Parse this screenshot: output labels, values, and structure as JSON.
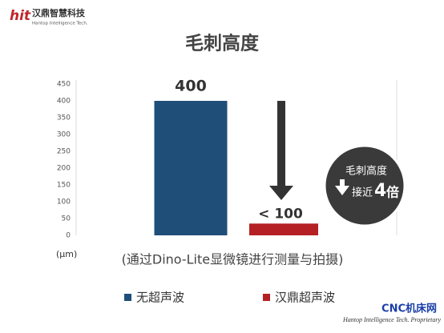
{
  "logo": {
    "mark": "hit",
    "name": "汉鼎智慧科技",
    "tagline": "Hantop Intelligence Tech."
  },
  "chart_data": {
    "type": "bar",
    "title": "毛刺高度",
    "subtitle": "(通过Dino-Lite显微镜进行测量与拍摄)",
    "y_label": "(μm)",
    "categories": [
      null,
      null
    ],
    "series": [
      {
        "name": "无超声波",
        "color": "#1f4e79",
        "values": [
          400,
          null
        ],
        "value_labels": [
          "400",
          null
        ]
      },
      {
        "name": "汉鼎超声波",
        "color": "#b52025",
        "values": [
          null,
          35
        ],
        "value_labels": [
          null,
          "< 100"
        ]
      }
    ],
    "ylim": [
      0,
      450
    ],
    "yticks": [
      0,
      50,
      100,
      150,
      200,
      250,
      300,
      350,
      400,
      450
    ],
    "grid": false,
    "badge": [
      "毛刺高度",
      "接近",
      "4",
      "倍"
    ]
  },
  "watermark": {
    "site": "CNC机床网",
    "note": "Hantop Intelligence Tech. Proprietary"
  }
}
